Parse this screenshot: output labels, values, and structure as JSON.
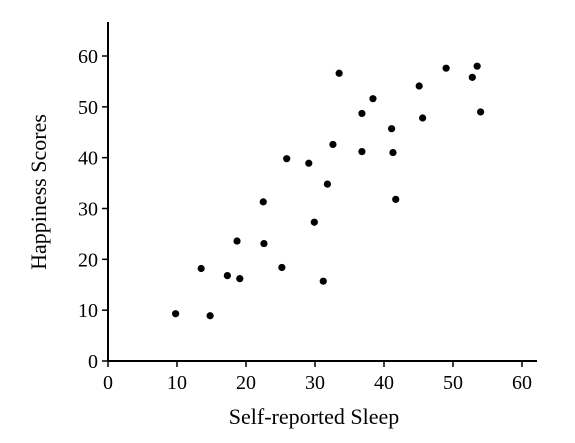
{
  "chart_data": {
    "type": "scatter",
    "title": "",
    "xlabel": "Self-reported Sleep",
    "ylabel": "Happiness Scores",
    "xlim": [
      0,
      62
    ],
    "ylim": [
      0,
      66
    ],
    "x_ticks": [
      0,
      10,
      20,
      30,
      40,
      50,
      60
    ],
    "y_ticks": [
      0,
      10,
      20,
      30,
      40,
      50,
      60
    ],
    "grid": false,
    "legend": "none",
    "marker_color": "#000000",
    "series": [
      {
        "points": [
          [
            9.8,
            9.3
          ],
          [
            13.5,
            18.2
          ],
          [
            14.8,
            8.9
          ],
          [
            17.3,
            16.8
          ],
          [
            18.7,
            23.6
          ],
          [
            19.1,
            16.2
          ],
          [
            22.5,
            31.3
          ],
          [
            22.6,
            23.1
          ],
          [
            25.2,
            18.4
          ],
          [
            25.9,
            39.8
          ],
          [
            29.1,
            38.9
          ],
          [
            29.9,
            27.3
          ],
          [
            31.2,
            15.7
          ],
          [
            31.8,
            34.8
          ],
          [
            32.6,
            42.6
          ],
          [
            33.5,
            56.6
          ],
          [
            36.8,
            41.2
          ],
          [
            36.8,
            48.7
          ],
          [
            38.4,
            51.6
          ],
          [
            41.1,
            45.7
          ],
          [
            41.3,
            41.0
          ],
          [
            41.7,
            31.8
          ],
          [
            45.1,
            54.1
          ],
          [
            45.6,
            47.8
          ],
          [
            49.0,
            57.6
          ],
          [
            52.8,
            55.8
          ],
          [
            53.5,
            58.0
          ],
          [
            54.0,
            49.0
          ]
        ]
      }
    ]
  }
}
